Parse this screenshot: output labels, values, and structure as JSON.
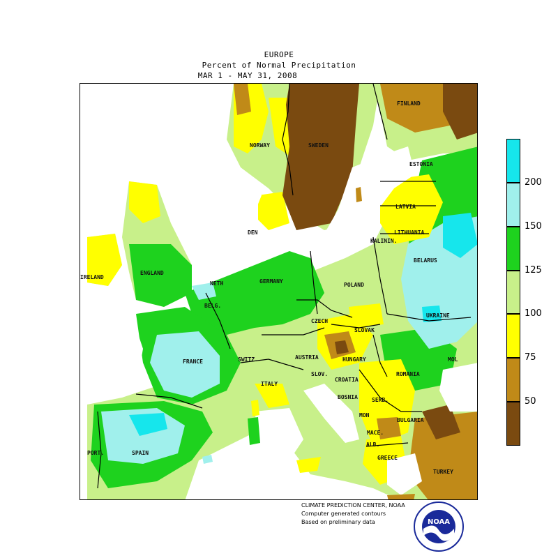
{
  "header": {
    "title": "EUROPE",
    "subtitle": "Percent of Normal Precipitation",
    "period": "MAR  1 - MAY 31, 2008"
  },
  "legend": {
    "ticks": [
      "50",
      "75",
      "100",
      "125",
      "150",
      "200"
    ],
    "bins": [
      {
        "color": "#7a4a10"
      },
      {
        "color": "#c08a18"
      },
      {
        "color": "#ffff00"
      },
      {
        "color": "#c8f08a"
      },
      {
        "color": "#1ed21e"
      },
      {
        "color": "#a0f0ec"
      },
      {
        "color": "#16e6ec"
      }
    ]
  },
  "colors": {
    "lt50": "#7a4a10",
    "c50_75": "#c08a18",
    "c75_100": "#ffff00",
    "c100_125": "#c8f08a",
    "c125_150": "#1ed21e",
    "c150_200": "#a0f0ec",
    "gt200": "#16e6ec"
  },
  "map_labels": {
    "finland": "FINLAND",
    "norway": "NORWAY",
    "sweden": "SWEDEN",
    "estonia": "ESTONIA",
    "latvia": "LATVIA",
    "lithuania": "LITHUANIA",
    "kalinin": "KALININ.",
    "den": "DEN",
    "belarus": "BELARUS",
    "ireland": "IRELAND",
    "england": "ENGLAND",
    "neth": "NETH",
    "germany": "GERMANY",
    "poland": "POLAND",
    "bels": "BELG.",
    "ukraine": "UKRAINE",
    "czech": "CZECH",
    "slovak": "SLOVAK",
    "austria": "AUSTRIA",
    "hungary": "HUNGARY",
    "mol": "MOL",
    "france": "FRANCE",
    "switz": "SWITZ.",
    "slov": "SLOV.",
    "croatia": "CROATIA",
    "romania": "ROMANIA",
    "italy": "ITALY",
    "bosnia": "BOSNIA",
    "serb": "SERB.",
    "mon": "MON",
    "bulgaria": "BULGARIA",
    "mace": "MACE.",
    "port": "PORT.",
    "spain": "SPAIN",
    "alb": "ALB.",
    "greece": "GREECE",
    "turkey": "TURKEY"
  },
  "credits": {
    "line1": "CLIMATE PREDICTION CENTER, NOAA",
    "line2": "Computer generated contours",
    "line3": "Based on preliminary data"
  },
  "logo": {
    "text": "NOAA"
  }
}
